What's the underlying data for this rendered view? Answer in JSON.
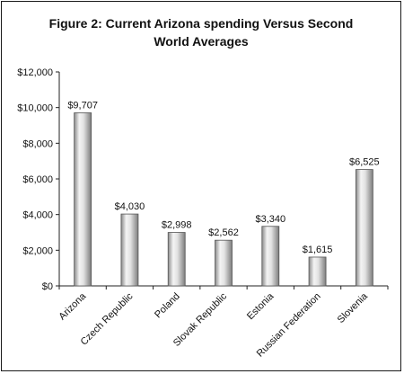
{
  "chart_data": {
    "type": "bar",
    "title_line1": "Figure 2: Current Arizona spending Versus Second",
    "title_line2": "World Averages",
    "categories": [
      "Arizona",
      "Czech Republic",
      "Poland",
      "Slovak Republic",
      "Estonia",
      "Russian Federation",
      "Slovenia"
    ],
    "values": [
      9707,
      4030,
      2998,
      2562,
      3340,
      1615,
      6525
    ],
    "value_labels": [
      "$9,707",
      "$4,030",
      "$2,998",
      "$2,562",
      "$3,340",
      "$1,615",
      "$6,525"
    ],
    "y_ticks": [
      "$0",
      "$2,000",
      "$4,000",
      "$6,000",
      "$8,000",
      "$10,000",
      "$12,000"
    ],
    "ylim": [
      0,
      12000
    ],
    "grid": false,
    "legend": "none",
    "bar_color": "#c8c8c8"
  }
}
